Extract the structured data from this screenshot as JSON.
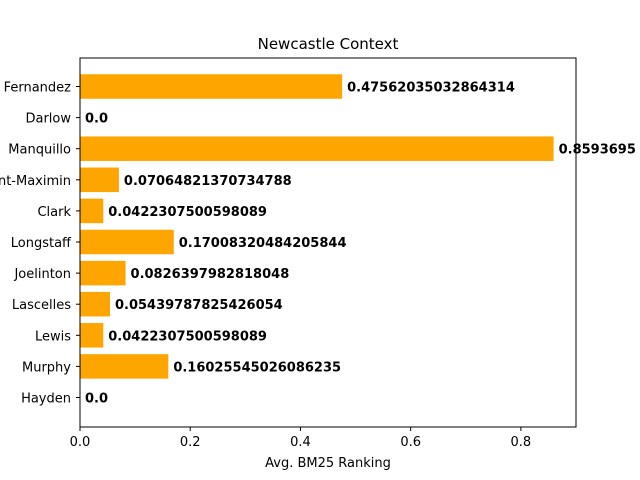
{
  "chart_data": {
    "type": "bar",
    "orientation": "horizontal",
    "title": "Newcastle Context",
    "xlabel": "Avg. BM25 Ranking",
    "ylabel": "",
    "xlim": [
      0.0,
      0.9
    ],
    "x_ticks": [
      "0.0",
      "0.2",
      "0.4",
      "0.6",
      "0.8"
    ],
    "grid": false,
    "bar_color": "#ffa500",
    "categories": [
      "Fernandez",
      "Darlow",
      "Manquillo",
      "Saint-Maximin",
      "Clark",
      "Longstaff",
      "Joelinton",
      "Lascelles",
      "Lewis",
      "Murphy",
      "Hayden"
    ],
    "values": [
      0.47562035032864314,
      0.0,
      0.8593695,
      0.07064821370734788,
      0.0422307500598089,
      0.17008320484205844,
      0.0826397982818048,
      0.05439787825426054,
      0.0422307500598089,
      0.16025545026086235,
      0.0
    ],
    "value_labels": [
      "0.47562035032864314",
      "0.0",
      "0.8593695",
      "0.07064821370734788",
      "0.0422307500598089",
      "0.17008320484205844",
      "0.0826397982818048",
      "0.05439787825426054",
      "0.0422307500598089",
      "0.16025545026086235",
      "0.0"
    ]
  }
}
